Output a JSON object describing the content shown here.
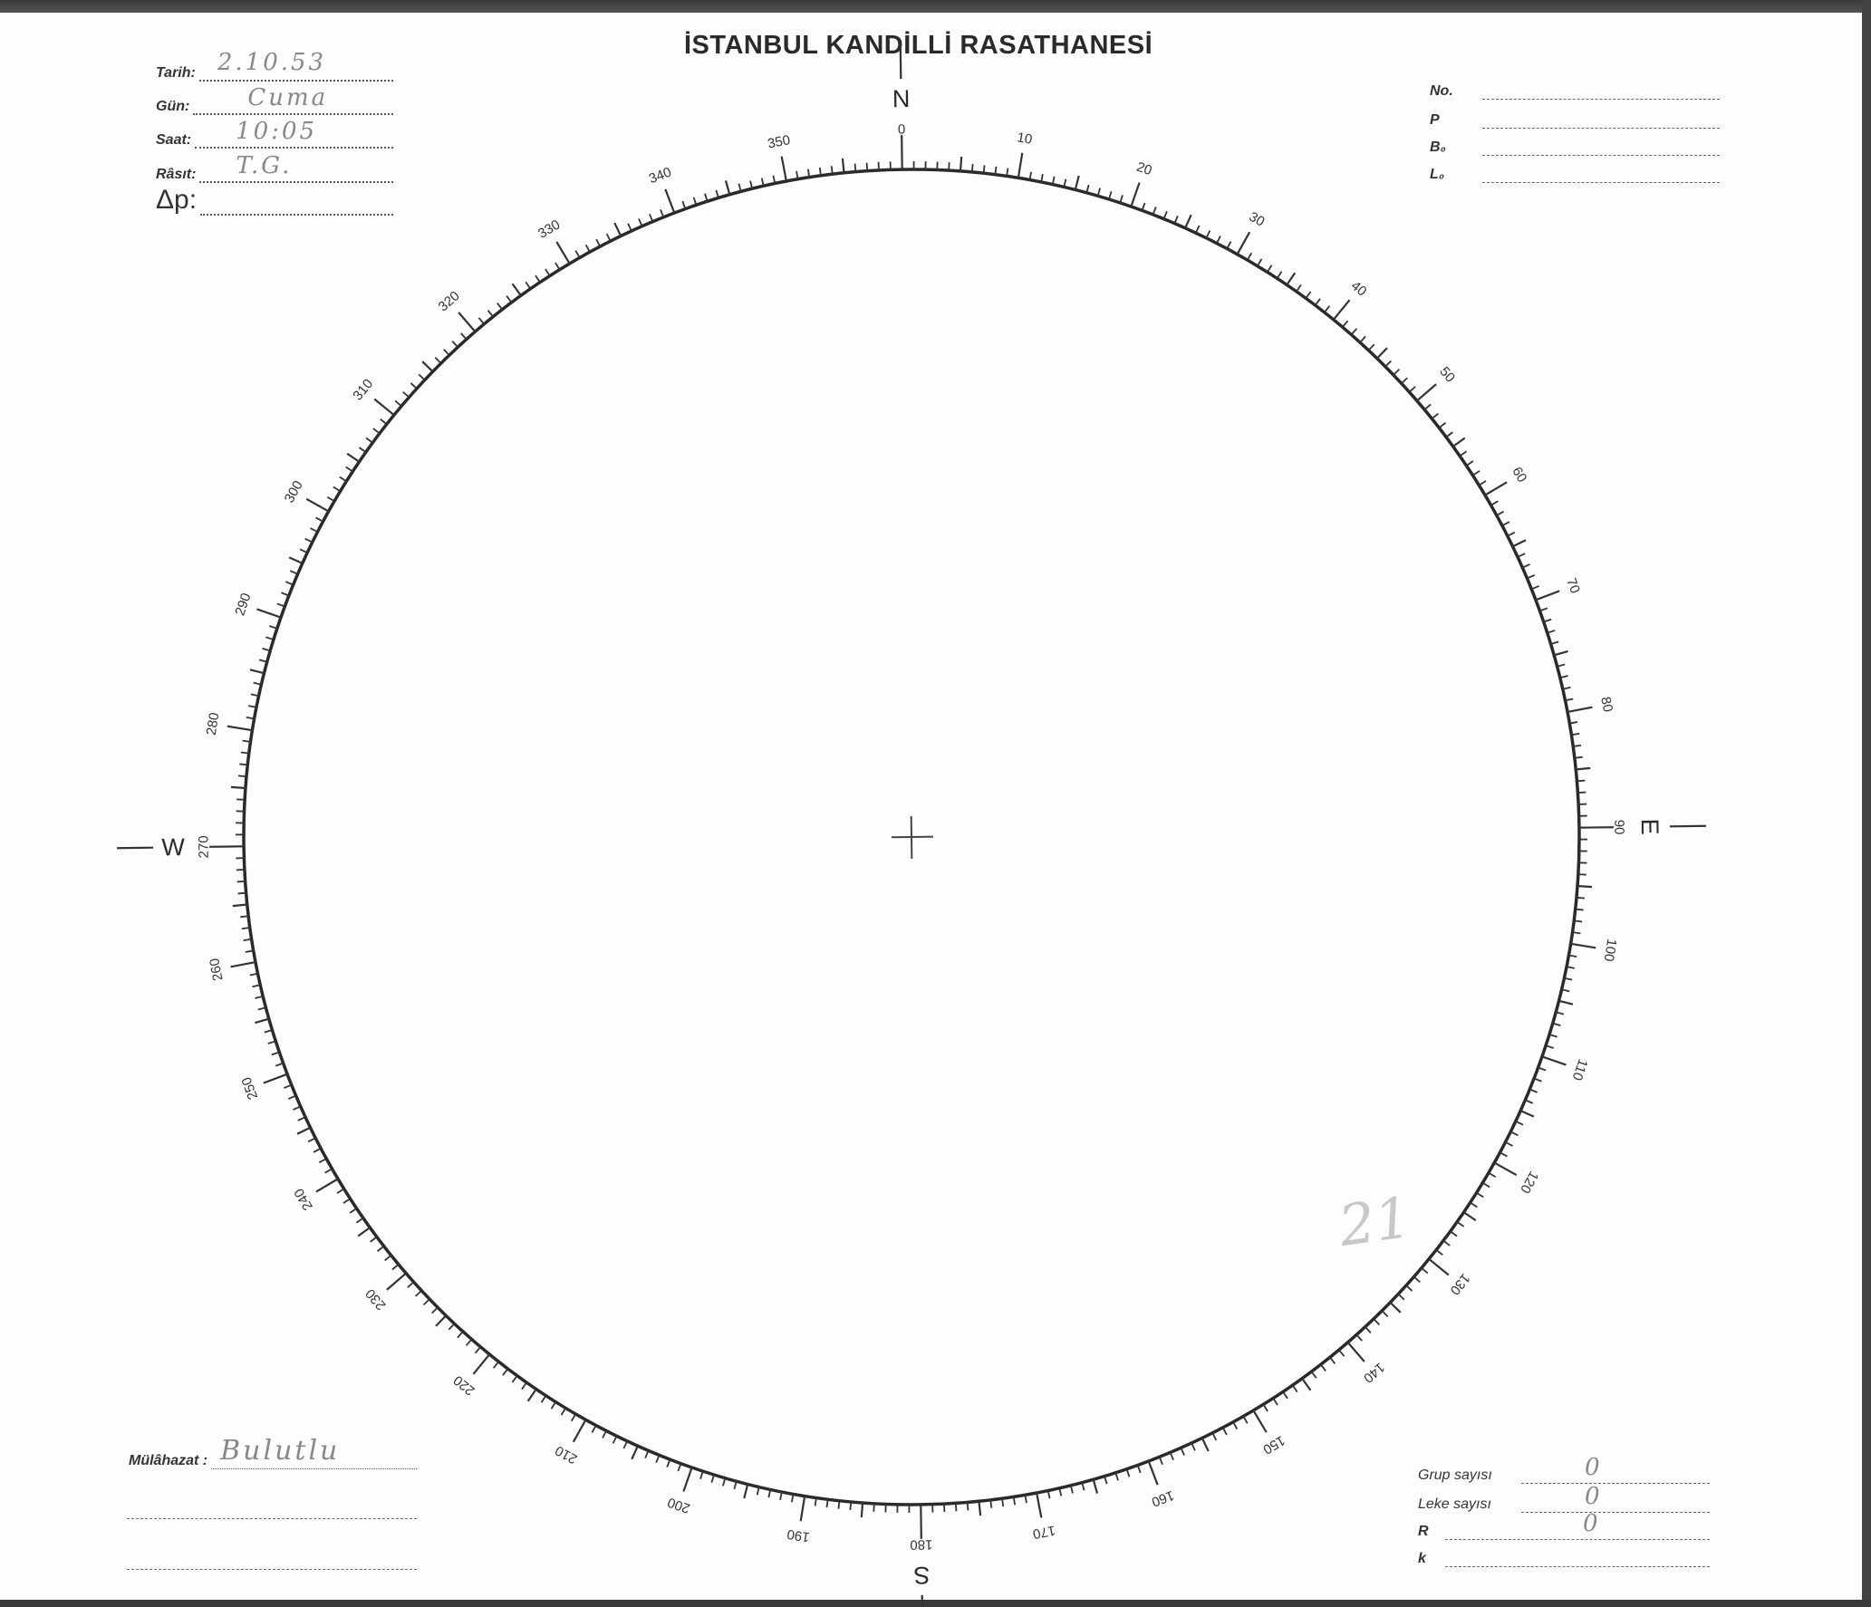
{
  "title": "İSTANBUL KANDİLLİ RASATHANESİ",
  "header_left": [
    {
      "label": "Tarih:",
      "value": "2.10.53"
    },
    {
      "label": "Gün:",
      "value": "Cuma"
    },
    {
      "label": "Saat:",
      "value": "10:05"
    },
    {
      "label": "Râsıt:",
      "value": "T.G."
    },
    {
      "label": "Δp:",
      "value": ""
    }
  ],
  "header_right": [
    {
      "label": "No.",
      "value": ""
    },
    {
      "label": "P",
      "value": ""
    },
    {
      "label": "B₀",
      "value": ""
    },
    {
      "label": "L₀",
      "value": ""
    }
  ],
  "dial": {
    "cardinals": {
      "north": "N",
      "east": "E",
      "south": "S",
      "west": "W"
    },
    "scale_labels": [
      "0",
      "10",
      "20",
      "30",
      "40",
      "50",
      "60",
      "70",
      "80",
      "90",
      "100",
      "110",
      "120",
      "130",
      "140",
      "150",
      "160",
      "170",
      "180",
      "190",
      "200",
      "210",
      "220",
      "230",
      "240",
      "250",
      "260",
      "270",
      "280",
      "290",
      "300",
      "310",
      "320",
      "330",
      "340",
      "350"
    ],
    "pencil_note": "21"
  },
  "remarks": {
    "label": "Mülâhazat :",
    "value": "Bulutlu"
  },
  "footer_right": [
    {
      "label": "Grup sayısı",
      "value": "0"
    },
    {
      "label": "Leke sayısı",
      "value": "0"
    },
    {
      "label": "R",
      "value": "0"
    },
    {
      "label": "k",
      "value": ""
    }
  ]
}
